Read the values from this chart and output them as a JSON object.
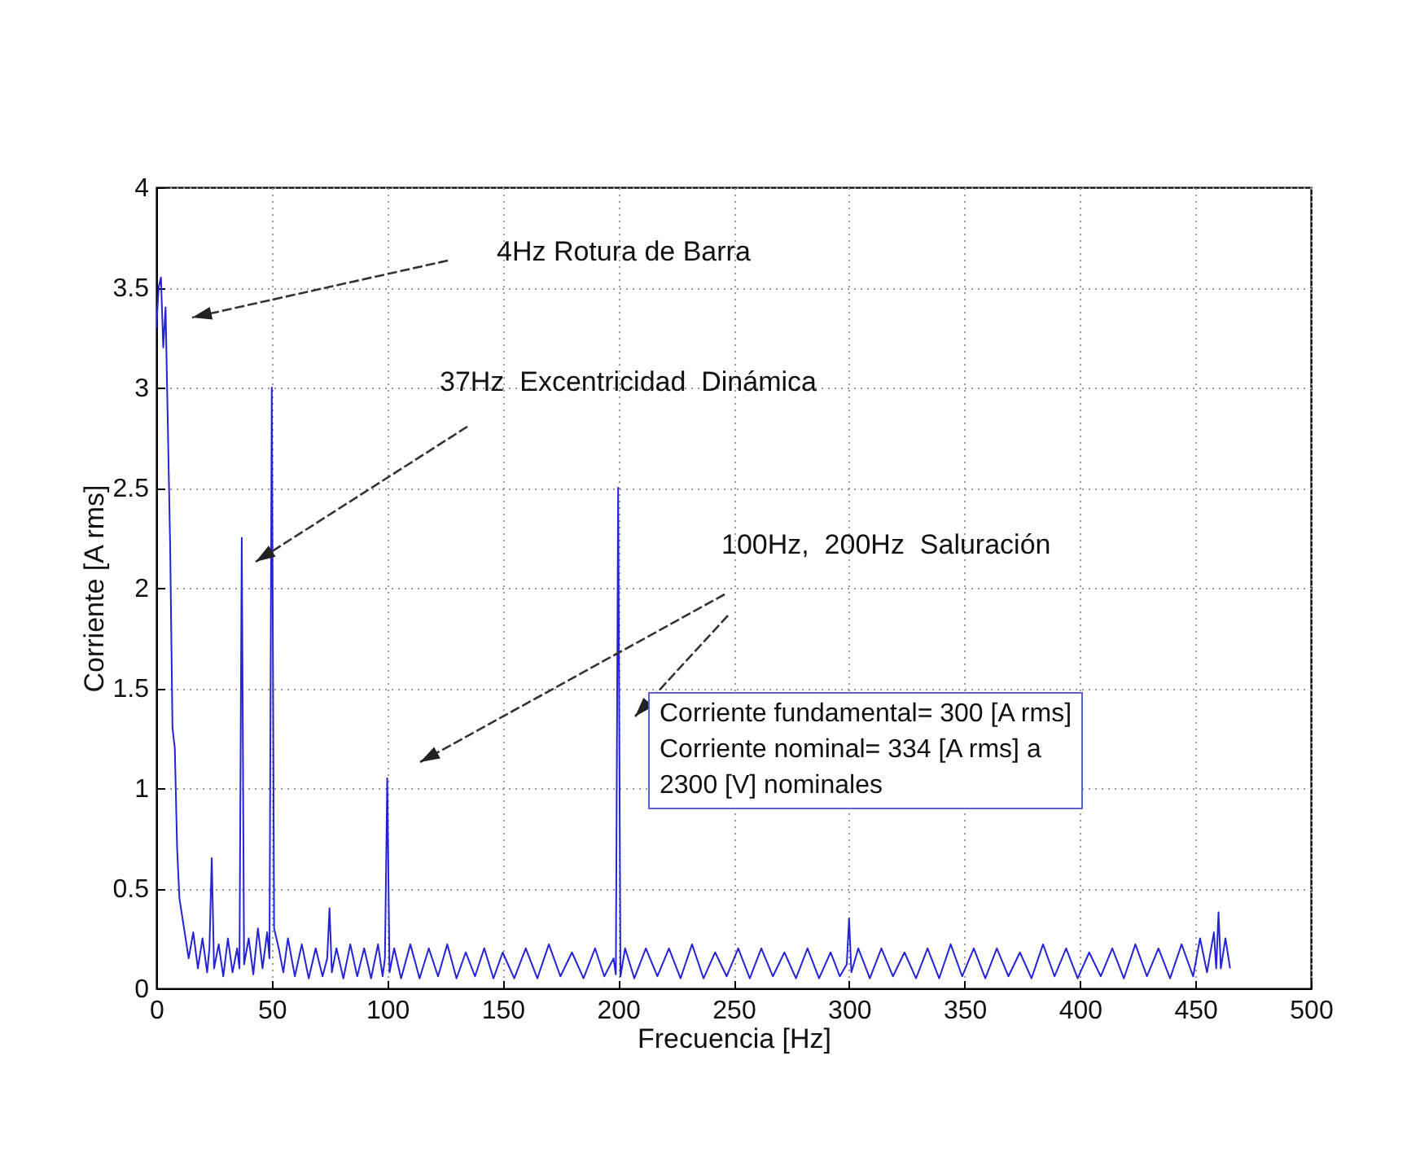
{
  "chart_data": {
    "type": "line",
    "xlabel": "Frecuencia [Hz]",
    "ylabel": "Corriente [A rms]",
    "xlim": [
      0,
      500
    ],
    "xticks": [
      0,
      50,
      100,
      150,
      200,
      250,
      300,
      350,
      400,
      450,
      500
    ],
    "ylim": [
      0,
      4
    ],
    "yticks": [
      0,
      0.5,
      1,
      1.5,
      2,
      2.5,
      3,
      3.5,
      4
    ],
    "grid": true,
    "annotations": [
      "4Hz Rotura de Barra",
      "37Hz  Excentricidad  Dinámica",
      "100Hz,  200Hz  Saluración",
      "Corriente fundamental= 300 [A rms]\nCorriente nominal= 334 [A rms] a\n2300 [V] nominales"
    ],
    "x": [
      0,
      1,
      2,
      3,
      4,
      5,
      6,
      7,
      8,
      9,
      10,
      12,
      14,
      16,
      18,
      20,
      22,
      23,
      24,
      25,
      27,
      29,
      31,
      33,
      35,
      36,
      37,
      38,
      40,
      42,
      44,
      46,
      48,
      49,
      50,
      51,
      53,
      55,
      57,
      60,
      63,
      66,
      69,
      72,
      74,
      75,
      76,
      78,
      81,
      84,
      87,
      90,
      93,
      96,
      98,
      99,
      100,
      101,
      103,
      106,
      110,
      114,
      118,
      122,
      126,
      130,
      134,
      138,
      142,
      146,
      150,
      155,
      160,
      165,
      170,
      175,
      180,
      185,
      190,
      194,
      198,
      199,
      200,
      201,
      203,
      207,
      212,
      217,
      222,
      227,
      232,
      237,
      242,
      247,
      252,
      257,
      262,
      267,
      272,
      277,
      282,
      287,
      292,
      296,
      299,
      300,
      301,
      304,
      309,
      314,
      319,
      324,
      329,
      334,
      339,
      344,
      349,
      354,
      359,
      364,
      369,
      374,
      379,
      384,
      389,
      394,
      399,
      404,
      409,
      414,
      419,
      424,
      429,
      434,
      439,
      444,
      449,
      452,
      455,
      458,
      459,
      460,
      461,
      463,
      465
    ],
    "series": [
      {
        "color": "#2424d6",
        "values": [
          3.3,
          3.5,
          3.55,
          3.2,
          3.4,
          2.8,
          2.2,
          1.3,
          1.2,
          0.7,
          0.45,
          0.3,
          0.15,
          0.28,
          0.1,
          0.25,
          0.08,
          0.2,
          0.65,
          0.1,
          0.22,
          0.06,
          0.25,
          0.08,
          0.2,
          0.1,
          2.25,
          0.12,
          0.25,
          0.07,
          0.3,
          0.1,
          0.28,
          0.15,
          3.0,
          0.3,
          0.2,
          0.08,
          0.25,
          0.06,
          0.22,
          0.05,
          0.2,
          0.06,
          0.15,
          0.4,
          0.08,
          0.2,
          0.05,
          0.22,
          0.06,
          0.2,
          0.05,
          0.22,
          0.06,
          0.15,
          1.05,
          0.08,
          0.2,
          0.05,
          0.22,
          0.05,
          0.2,
          0.06,
          0.22,
          0.05,
          0.18,
          0.06,
          0.2,
          0.05,
          0.18,
          0.05,
          0.2,
          0.05,
          0.22,
          0.06,
          0.18,
          0.05,
          0.2,
          0.06,
          0.15,
          0.07,
          2.5,
          0.06,
          0.2,
          0.05,
          0.2,
          0.06,
          0.2,
          0.05,
          0.22,
          0.05,
          0.18,
          0.06,
          0.2,
          0.05,
          0.2,
          0.06,
          0.18,
          0.05,
          0.2,
          0.05,
          0.18,
          0.06,
          0.12,
          0.35,
          0.08,
          0.2,
          0.05,
          0.2,
          0.06,
          0.18,
          0.05,
          0.2,
          0.05,
          0.22,
          0.06,
          0.2,
          0.05,
          0.2,
          0.06,
          0.18,
          0.05,
          0.22,
          0.06,
          0.2,
          0.05,
          0.18,
          0.06,
          0.2,
          0.05,
          0.22,
          0.06,
          0.2,
          0.05,
          0.22,
          0.06,
          0.25,
          0.08,
          0.28,
          0.1,
          0.38,
          0.1,
          0.25,
          0.1
        ]
      }
    ]
  }
}
